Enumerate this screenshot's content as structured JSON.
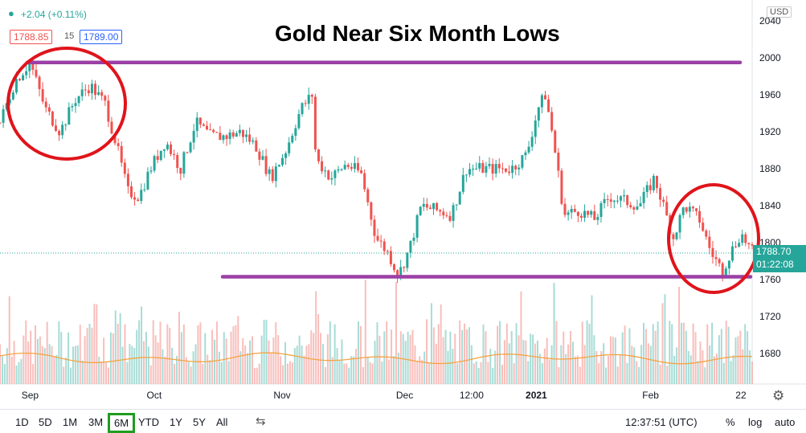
{
  "header": {
    "change": "+2.04 (+0.11%)",
    "bid": "1788.85",
    "spread": "15",
    "ask": "1789.00",
    "currency": "USD"
  },
  "headline": "Gold Near Six Month Lows",
  "price_tag": {
    "price": "1788.70",
    "countdown": "01:22:08"
  },
  "toolbar": {
    "ranges": [
      "1D",
      "5D",
      "1M",
      "3M",
      "6M",
      "YTD",
      "1Y",
      "5Y",
      "All"
    ],
    "active_range": "6M",
    "time": "12:37:51 (UTC)",
    "percent": "%",
    "log": "log",
    "auto": "auto"
  },
  "colors": {
    "up": "#26a69a",
    "down": "#ef5350",
    "line": "#9b3fa5",
    "circle": "#e0141b",
    "ma": "#f5a442",
    "active": "#1e9d1e"
  },
  "chart_data": {
    "type": "candlestick",
    "title": "Gold Near Six Month Lows",
    "y_ticks": [
      1680,
      1720,
      1760,
      1800,
      1840,
      1880,
      1920,
      1960,
      2000,
      2040
    ],
    "ylim": [
      1645,
      2060
    ],
    "x_ticks": [
      "Sep",
      "Oct",
      "Nov",
      "Dec",
      "12:00",
      "2021",
      "Feb",
      "22"
    ],
    "x_tick_positions": [
      0.04,
      0.205,
      0.375,
      0.538,
      0.627,
      0.713,
      0.865,
      0.985
    ],
    "price_path": [
      [
        0.0,
        1930
      ],
      [
        0.02,
        1975
      ],
      [
        0.04,
        1995
      ],
      [
        0.06,
        1945
      ],
      [
        0.08,
        1920
      ],
      [
        0.1,
        1955
      ],
      [
        0.12,
        1970
      ],
      [
        0.14,
        1950
      ],
      [
        0.155,
        1905
      ],
      [
        0.17,
        1855
      ],
      [
        0.185,
        1850
      ],
      [
        0.2,
        1880
      ],
      [
        0.22,
        1910
      ],
      [
        0.24,
        1880
      ],
      [
        0.26,
        1930
      ],
      [
        0.28,
        1915
      ],
      [
        0.3,
        1915
      ],
      [
        0.32,
        1920
      ],
      [
        0.34,
        1905
      ],
      [
        0.36,
        1870
      ],
      [
        0.38,
        1900
      ],
      [
        0.4,
        1945
      ],
      [
        0.415,
        1960
      ],
      [
        0.42,
        1890
      ],
      [
        0.44,
        1870
      ],
      [
        0.46,
        1885
      ],
      [
        0.48,
        1875
      ],
      [
        0.5,
        1805
      ],
      [
        0.515,
        1790
      ],
      [
        0.53,
        1765
      ],
      [
        0.545,
        1795
      ],
      [
        0.56,
        1840
      ],
      [
        0.58,
        1835
      ],
      [
        0.6,
        1830
      ],
      [
        0.62,
        1880
      ],
      [
        0.64,
        1880
      ],
      [
        0.66,
        1880
      ],
      [
        0.68,
        1880
      ],
      [
        0.7,
        1895
      ],
      [
        0.715,
        1945
      ],
      [
        0.725,
        1960
      ],
      [
        0.735,
        1915
      ],
      [
        0.75,
        1830
      ],
      [
        0.77,
        1835
      ],
      [
        0.79,
        1825
      ],
      [
        0.81,
        1850
      ],
      [
        0.83,
        1845
      ],
      [
        0.85,
        1840
      ],
      [
        0.87,
        1870
      ],
      [
        0.88,
        1845
      ],
      [
        0.895,
        1805
      ],
      [
        0.91,
        1840
      ],
      [
        0.93,
        1825
      ],
      [
        0.945,
        1790
      ],
      [
        0.96,
        1770
      ],
      [
        0.975,
        1795
      ],
      [
        0.985,
        1810
      ],
      [
        1.0,
        1790
      ]
    ],
    "resistance": 1995,
    "support": 1763,
    "last_price": 1788.7
  }
}
